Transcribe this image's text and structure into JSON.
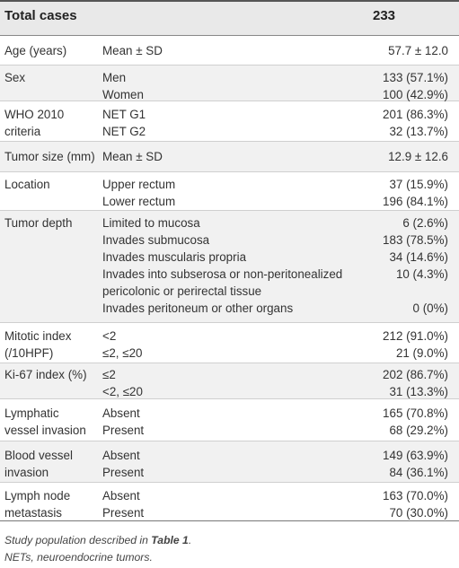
{
  "header": {
    "label": "Total cases",
    "value": "233"
  },
  "rows": [
    {
      "h": 32,
      "p": 7,
      "c1": [
        "Age (years)"
      ],
      "c2": [
        "Mean ± SD"
      ],
      "c3": [
        "57.7 ± 12.0"
      ]
    },
    {
      "h": 39,
      "p": 4,
      "c1": [
        "Sex"
      ],
      "c2": [
        "Men",
        "Women"
      ],
      "c3": [
        "133 (57.1%)",
        "100 (42.9%)"
      ]
    },
    {
      "h": 44,
      "p": 5,
      "c1": [
        "WHO 2010",
        "criteria"
      ],
      "c2": [
        "NET G1",
        "NET G2"
      ],
      "c3": [
        "201 (86.3%)",
        "32 (13.7%)"
      ]
    },
    {
      "h": 33,
      "p": 7,
      "c1": [
        "Tumor size (mm)"
      ],
      "c2": [
        "Mean ± SD"
      ],
      "c3": [
        "12.9 ± 12.6"
      ]
    },
    {
      "h": 42,
      "p": 4,
      "c1": [
        "Location"
      ],
      "c2": [
        "Upper rectum",
        "Lower rectum"
      ],
      "c3": [
        "37 (15.9%)",
        "196 (84.1%)"
      ]
    },
    {
      "h": 124,
      "p": 4,
      "c1": [
        "Tumor depth"
      ],
      "c2": [
        "Limited to mucosa",
        "Invades submucosa",
        "Invades muscularis propria",
        "Invades into subserosa or non-peritonealized",
        "pericolonic or perirectal tissue",
        "Invades peritoneum or other organs"
      ],
      "c3": [
        "6 (2.6%)",
        "183 (78.5%)",
        "34 (14.6%)",
        "10 (4.3%)",
        "",
        "0 (0%)"
      ]
    },
    {
      "h": 44,
      "p": 5,
      "c1": [
        "Mitotic index",
        "(/10HPF)"
      ],
      "c2": [
        "<2",
        "≤2, ≤20"
      ],
      "c3": [
        "212 (91.0%)",
        "21 (9.0%)"
      ]
    },
    {
      "h": 39,
      "p": 3,
      "c1": [
        "Ki-67 index (%)"
      ],
      "c2": [
        "≤2",
        "<2, ≤20"
      ],
      "c3": [
        "202 (86.7%)",
        "31 (13.3%)"
      ]
    },
    {
      "h": 46,
      "p": 6,
      "c1": [
        "Lymphatic",
        "vessel invasion"
      ],
      "c2": [
        "Absent",
        "Present"
      ],
      "c3": [
        "165 (70.8%)",
        "68 (29.2%)"
      ]
    },
    {
      "h": 45,
      "p": 6,
      "c1": [
        "Blood vessel",
        "invasion"
      ],
      "c2": [
        "Absent",
        "Present"
      ],
      "c3": [
        "149 (63.9%)",
        "84 (36.1%)"
      ]
    },
    {
      "h": 42,
      "p": 5,
      "c1": [
        "Lymph node",
        "metastasis"
      ],
      "c2": [
        "Absent",
        "Present"
      ],
      "c3": [
        "163 (70.0%)",
        "70 (30.0%)"
      ]
    }
  ],
  "footnotes": {
    "line1_prefix": "Study population described in ",
    "line1_ref": "Table 1",
    "line1_suffix": ".",
    "line2": "NETs, neuroendocrine tumors."
  }
}
